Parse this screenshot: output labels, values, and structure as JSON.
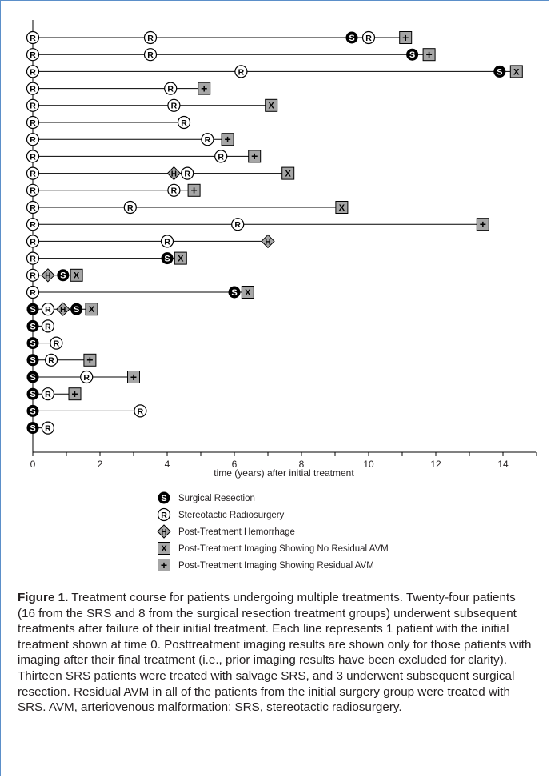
{
  "chart_data": {
    "type": "timeline",
    "xlabel": "time (years) after initial treatment",
    "xlim": [
      0,
      15
    ],
    "xticks": [
      0,
      2,
      4,
      6,
      8,
      10,
      12,
      14
    ],
    "symbols": {
      "S": {
        "glyph": "S",
        "label": "Surgical Resection",
        "color": "#000000"
      },
      "R": {
        "glyph": "R",
        "label": "Stereotactic Radiosurgery",
        "color": "#ffffff"
      },
      "H": {
        "glyph": "H",
        "label": "Post-Treatment Hemorrhage",
        "color": "#a6a6a6"
      },
      "X": {
        "glyph": "X",
        "label": "Post-Treatment Imaging Showing No Residual AVM",
        "color": "#a6a6a6"
      },
      "P": {
        "glyph": "+",
        "label": "Post-Treatment Imaging Showing Residual AVM",
        "color": "#a6a6a6"
      }
    },
    "legend_order": [
      "S",
      "R",
      "H",
      "X",
      "P"
    ],
    "patients": [
      [
        {
          "t": 0,
          "s": "R"
        },
        {
          "t": 3.5,
          "s": "R"
        },
        {
          "t": 9.5,
          "s": "S"
        },
        {
          "t": 10,
          "s": "R"
        },
        {
          "t": 11.1,
          "s": "P"
        }
      ],
      [
        {
          "t": 0,
          "s": "R"
        },
        {
          "t": 3.5,
          "s": "R"
        },
        {
          "t": 11.3,
          "s": "S"
        },
        {
          "t": 11.8,
          "s": "P"
        }
      ],
      [
        {
          "t": 0,
          "s": "R"
        },
        {
          "t": 6.2,
          "s": "R"
        },
        {
          "t": 13.9,
          "s": "S"
        },
        {
          "t": 14.4,
          "s": "X"
        }
      ],
      [
        {
          "t": 0,
          "s": "R"
        },
        {
          "t": 4.1,
          "s": "R"
        },
        {
          "t": 5.1,
          "s": "P"
        }
      ],
      [
        {
          "t": 0,
          "s": "R"
        },
        {
          "t": 4.2,
          "s": "R"
        },
        {
          "t": 7.1,
          "s": "X"
        }
      ],
      [
        {
          "t": 0,
          "s": "R"
        },
        {
          "t": 4.5,
          "s": "R"
        }
      ],
      [
        {
          "t": 0,
          "s": "R"
        },
        {
          "t": 5.2,
          "s": "R"
        },
        {
          "t": 5.8,
          "s": "P"
        }
      ],
      [
        {
          "t": 0,
          "s": "R"
        },
        {
          "t": 5.6,
          "s": "R"
        },
        {
          "t": 6.6,
          "s": "P"
        }
      ],
      [
        {
          "t": 0,
          "s": "R"
        },
        {
          "t": 4.2,
          "s": "H"
        },
        {
          "t": 4.6,
          "s": "R"
        },
        {
          "t": 7.6,
          "s": "X"
        }
      ],
      [
        {
          "t": 0,
          "s": "R"
        },
        {
          "t": 4.2,
          "s": "R"
        },
        {
          "t": 4.8,
          "s": "P"
        }
      ],
      [
        {
          "t": 0,
          "s": "R"
        },
        {
          "t": 2.9,
          "s": "R"
        },
        {
          "t": 9.2,
          "s": "X"
        }
      ],
      [
        {
          "t": 0,
          "s": "R"
        },
        {
          "t": 6.1,
          "s": "R"
        },
        {
          "t": 13.4,
          "s": "P"
        }
      ],
      [
        {
          "t": 0,
          "s": "R"
        },
        {
          "t": 4,
          "s": "R"
        },
        {
          "t": 7,
          "s": "H"
        }
      ],
      [
        {
          "t": 0,
          "s": "R"
        },
        {
          "t": 4,
          "s": "S"
        },
        {
          "t": 4.4,
          "s": "X"
        }
      ],
      [
        {
          "t": 0,
          "s": "R"
        },
        {
          "t": 0.45,
          "s": "H"
        },
        {
          "t": 0.9,
          "s": "S"
        },
        {
          "t": 1.3,
          "s": "X"
        }
      ],
      [
        {
          "t": 0,
          "s": "R"
        },
        {
          "t": 6,
          "s": "S"
        },
        {
          "t": 6.4,
          "s": "X"
        }
      ],
      [
        {
          "t": 0,
          "s": "S"
        },
        {
          "t": 0.45,
          "s": "R"
        },
        {
          "t": 0.9,
          "s": "H"
        },
        {
          "t": 1.3,
          "s": "S"
        },
        {
          "t": 1.75,
          "s": "X"
        }
      ],
      [
        {
          "t": 0,
          "s": "S"
        },
        {
          "t": 0.45,
          "s": "R"
        }
      ],
      [
        {
          "t": 0,
          "s": "S"
        },
        {
          "t": 0.7,
          "s": "R"
        }
      ],
      [
        {
          "t": 0,
          "s": "S"
        },
        {
          "t": 0.55,
          "s": "R"
        },
        {
          "t": 1.7,
          "s": "P"
        }
      ],
      [
        {
          "t": 0,
          "s": "S"
        },
        {
          "t": 1.6,
          "s": "R"
        },
        {
          "t": 3,
          "s": "P"
        }
      ],
      [
        {
          "t": 0,
          "s": "S"
        },
        {
          "t": 0.45,
          "s": "R"
        },
        {
          "t": 1.25,
          "s": "P"
        }
      ],
      [
        {
          "t": 0,
          "s": "S"
        },
        {
          "t": 3.2,
          "s": "R"
        }
      ],
      [
        {
          "t": 0,
          "s": "S"
        },
        {
          "t": 0.45,
          "s": "R"
        }
      ]
    ]
  },
  "caption": {
    "label": "Figure 1.",
    "text": "Treatment course for patients undergoing multiple treatments. Twenty-four patients (16 from the SRS and 8 from the surgical resection treatment groups) underwent subsequent treatments after failure of their initial treatment. Each line represents 1 patient with the initial treatment shown at time 0. Posttreatment imaging results are shown only for those patients with imaging after their final treatment (i.e., prior imaging results have been excluded for clarity). Thirteen SRS patients were treated with salvage SRS, and 3 underwent subsequent surgical resection. Residual AVM in all of the patients from the initial surgery group were treated with SRS. AVM, arteriovenous malformation; SRS, stereotactic radiosurgery."
  }
}
